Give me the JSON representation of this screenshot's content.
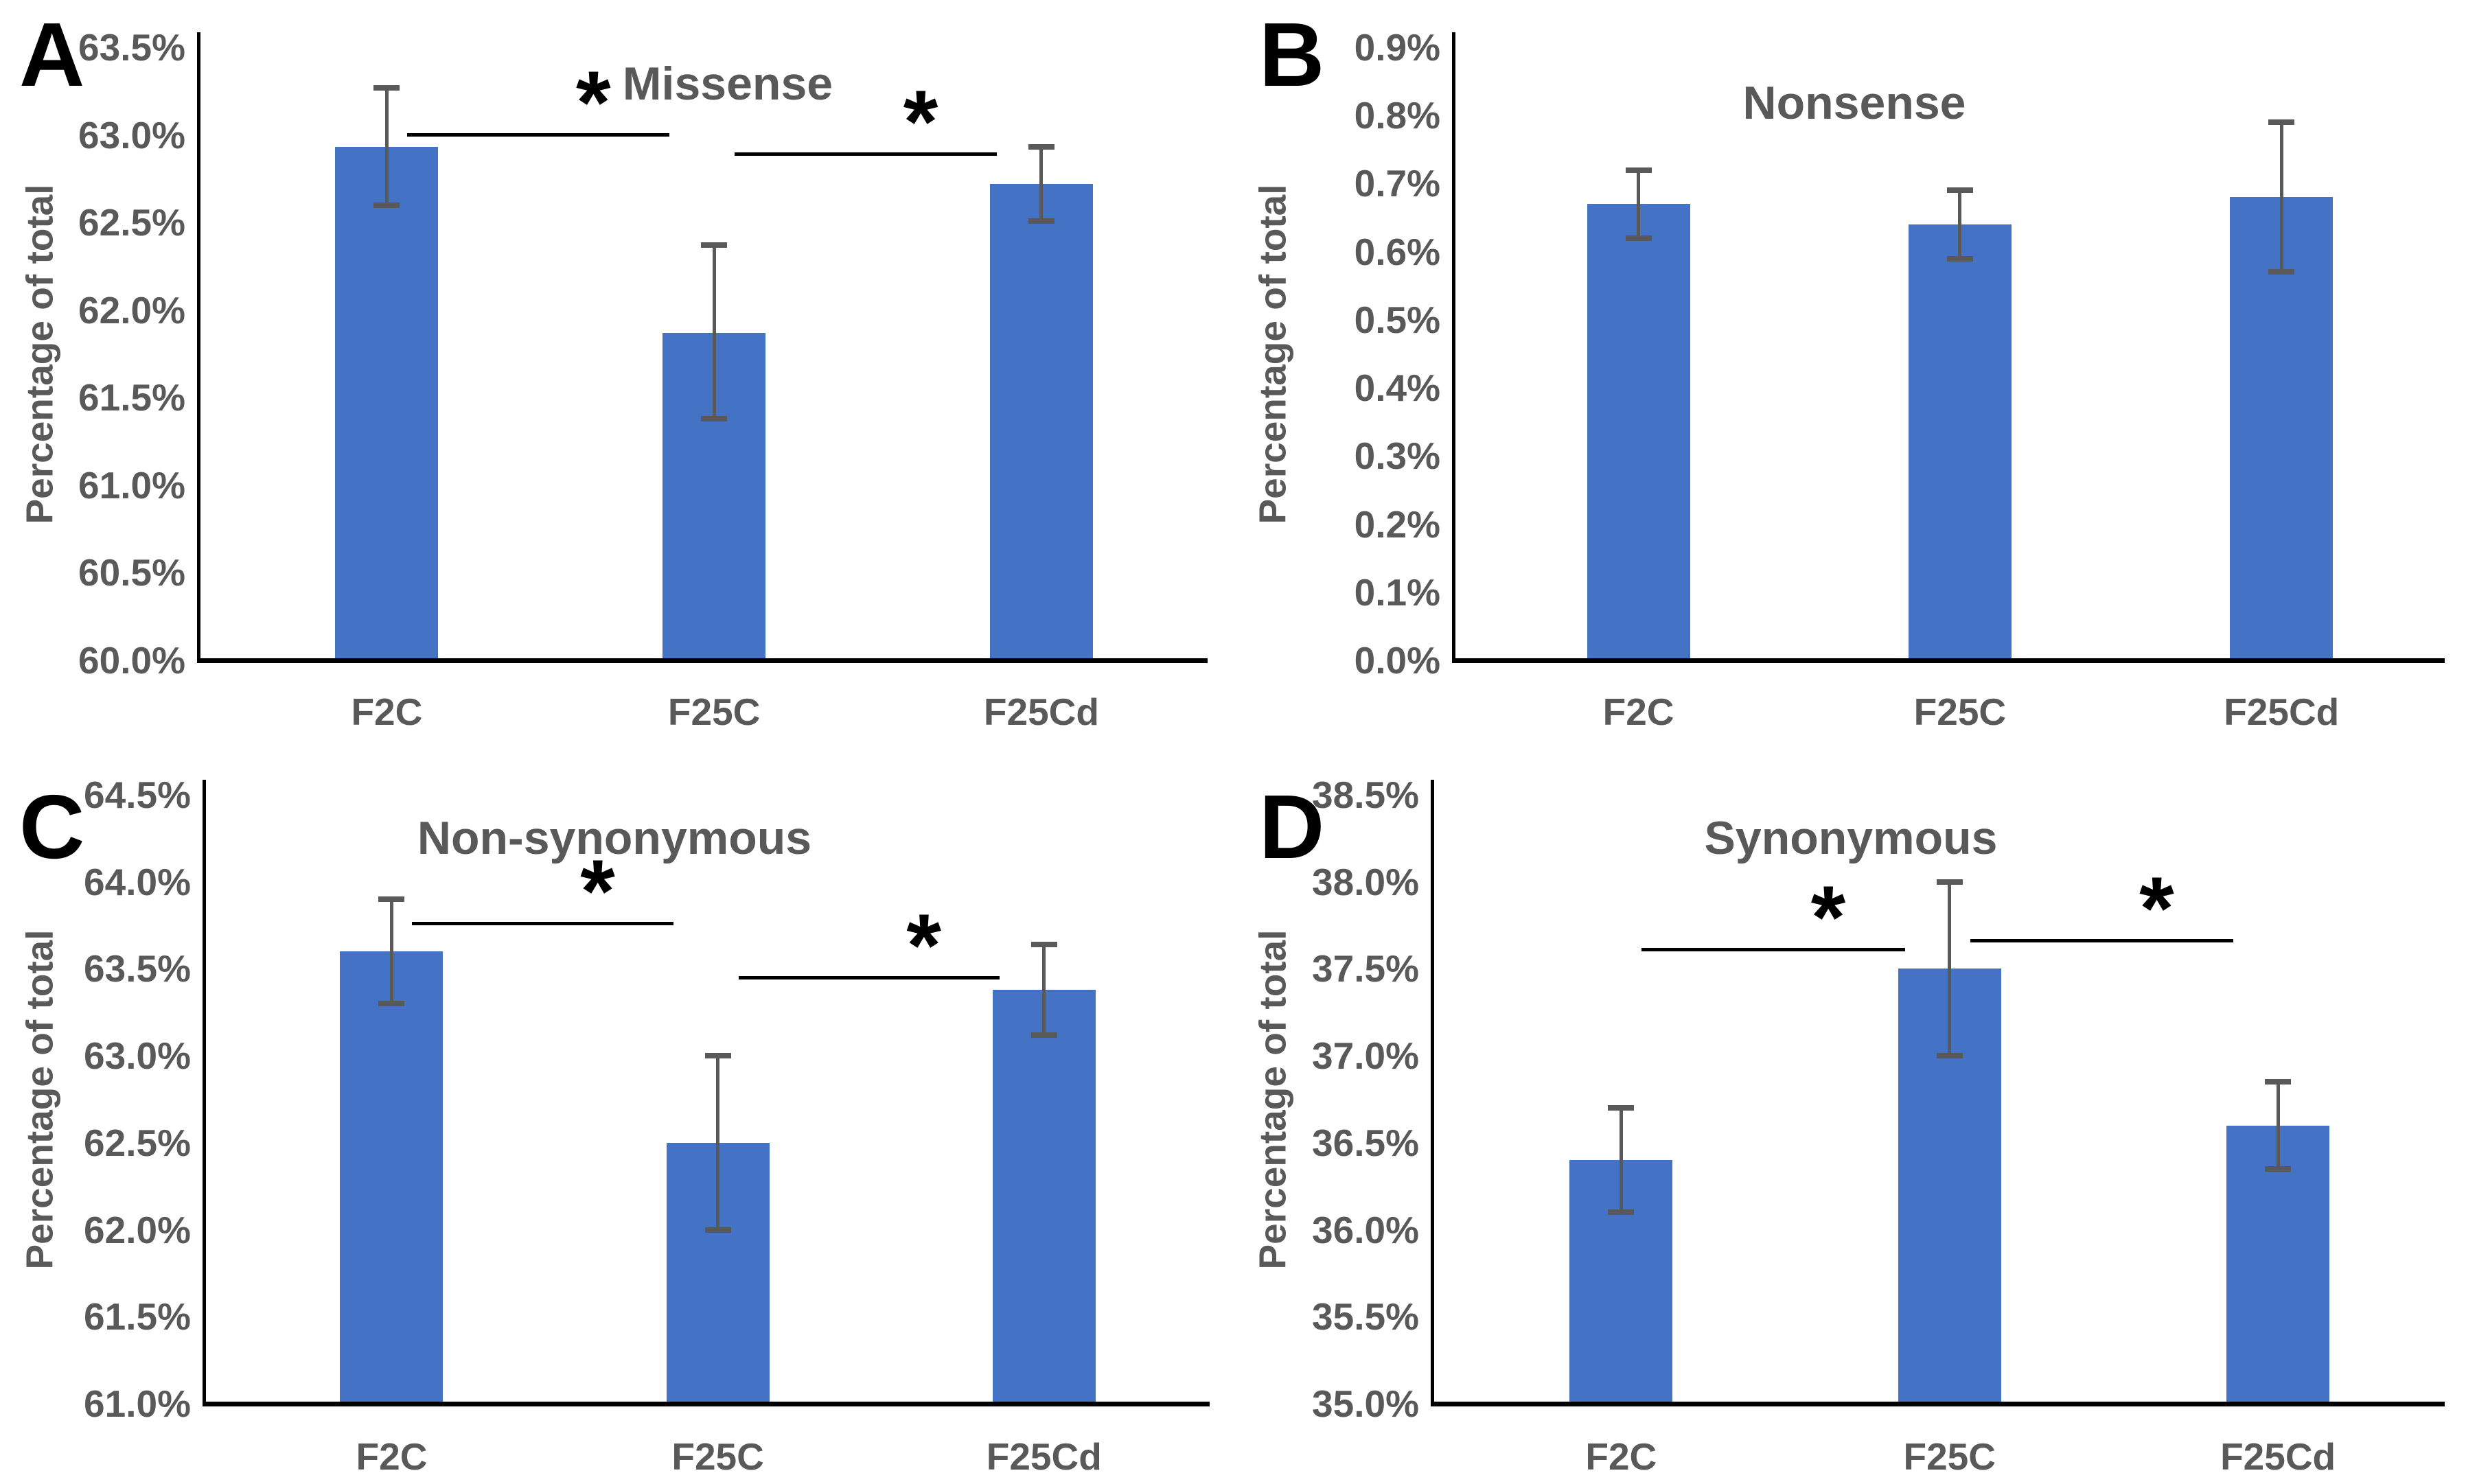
{
  "figure_title": "",
  "colors": {
    "bar": "#4472C4",
    "error_bar": "#595959",
    "axis": "#000000",
    "text": "#595959",
    "significance": "#000000"
  },
  "chart_data": [
    {
      "panel_label": "A",
      "type": "bar",
      "title": "Missense",
      "ylabel": "Percentage of total",
      "xlabel": "",
      "categories": [
        "F2C",
        "F25C",
        "F25Cd"
      ],
      "values": [
        62.93,
        61.87,
        62.72
      ],
      "error_low": [
        62.6,
        61.38,
        62.51
      ],
      "error_high": [
        63.27,
        62.37,
        62.93
      ],
      "ylim": [
        60.0,
        63.5
      ],
      "ytick_step": 0.5,
      "yticks": [
        "60.0%",
        "60.5%",
        "61.0%",
        "61.5%",
        "62.0%",
        "62.5%",
        "63.0%",
        "63.5%"
      ],
      "grid": false,
      "legend": false,
      "significance": [
        {
          "from": "F2C",
          "to": "F25C",
          "y": 63.01,
          "label": "*"
        },
        {
          "from": "F25C",
          "to": "F25Cd",
          "y": 62.9,
          "label": "*"
        }
      ]
    },
    {
      "panel_label": "B",
      "type": "bar",
      "title": "Nonsense",
      "ylabel": "Percentage of total",
      "xlabel": "",
      "categories": [
        "F2C",
        "F25C",
        "F25Cd"
      ],
      "values": [
        0.67,
        0.64,
        0.68
      ],
      "error_low": [
        0.62,
        0.59,
        0.57
      ],
      "error_high": [
        0.72,
        0.69,
        0.79
      ],
      "ylim": [
        0.0,
        0.9
      ],
      "ytick_step": 0.1,
      "yticks": [
        "0.0%",
        "0.1%",
        "0.2%",
        "0.3%",
        "0.4%",
        "0.5%",
        "0.6%",
        "0.7%",
        "0.8%",
        "0.9%"
      ],
      "grid": false,
      "legend": false,
      "significance": []
    },
    {
      "panel_label": "C",
      "type": "bar",
      "title": "Non-synonymous",
      "ylabel": "Percentage of total",
      "xlabel": "",
      "categories": [
        "F2C",
        "F25C",
        "F25Cd"
      ],
      "values": [
        63.6,
        62.5,
        63.38
      ],
      "error_low": [
        63.3,
        62.0,
        63.12
      ],
      "error_high": [
        63.9,
        63.0,
        63.64
      ],
      "ylim": [
        61.0,
        64.5
      ],
      "ytick_step": 0.5,
      "yticks": [
        "61.0%",
        "61.5%",
        "62.0%",
        "62.5%",
        "63.0%",
        "63.5%",
        "64.0%",
        "64.5%"
      ],
      "grid": false,
      "legend": false,
      "significance": [
        {
          "from": "F2C",
          "to": "F25C",
          "y": 63.77,
          "label": "*"
        },
        {
          "from": "F25C",
          "to": "F25Cd",
          "y": 63.46,
          "label": "*"
        }
      ]
    },
    {
      "panel_label": "D",
      "type": "bar",
      "title": "Synonymous",
      "ylabel": "Percentage of total",
      "xlabel": "",
      "categories": [
        "F2C",
        "F25C",
        "F25Cd"
      ],
      "values": [
        36.4,
        37.5,
        36.6
      ],
      "error_low": [
        36.1,
        37.0,
        36.35
      ],
      "error_high": [
        36.7,
        38.0,
        36.85
      ],
      "ylim": [
        35.0,
        38.5
      ],
      "ytick_step": 0.5,
      "yticks": [
        "35.0%",
        "35.5%",
        "36.0%",
        "36.5%",
        "37.0%",
        "37.5%",
        "38.0%",
        "38.5%"
      ],
      "grid": false,
      "legend": false,
      "significance": [
        {
          "from": "F2C",
          "to": "F25C",
          "y": 37.62,
          "label": "*"
        },
        {
          "from": "F25C",
          "to": "F25Cd",
          "y": 37.67,
          "label": "*"
        }
      ]
    }
  ]
}
